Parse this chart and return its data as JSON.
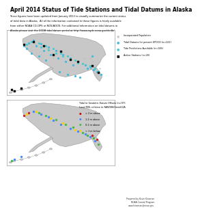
{
  "title": "April 2014 Status of Tide Stations and Tidal Datums in Alaska",
  "body_text1": "These figures have been updated from January 2013 to visually summarize the current status",
  "body_text2": "of tidal data in Alaska.  All of the information contained in these figures is freely available",
  "body_text3": "from either NOAA CO-OPS or NOS/AOOS. For additional information on tidal datums in",
  "body_text4": "Alaska please visit the DCDB tidal datum portal at http://www.ngdc.noaa.gov/dcdb/",
  "legend1_items": [
    {
      "label": "Incorporated Population",
      "color": "#cccccc",
      "marker": "o"
    },
    {
      "label": "Tidal Datums for present EPOCH (n=222)",
      "color": "#44bbdd",
      "marker": "o"
    },
    {
      "label": "Tide Predictions Available (n=146)",
      "color": "#44cccc",
      "marker": "o"
    },
    {
      "label": "Active Stations (n=26)",
      "color": "#111111",
      "marker": "s"
    }
  ],
  "legend2_title_line1": "Tidal to Geodetic Datum Offsets (n=97):",
  "legend2_title_line2": "Local MSL relative to NAVD88/Geoid12A",
  "legend2_items": [
    {
      "label": "> 2 m above",
      "color": "#cc0000",
      "marker": "o"
    },
    {
      "label": "1-2 m above",
      "color": "#4488ff",
      "marker": "o"
    },
    {
      "label": "0-1 m above",
      "color": "#44bb44",
      "marker": "o"
    },
    {
      "label": "< 1 m below",
      "color": "#ffcc00",
      "marker": "o"
    }
  ],
  "credit": "Prepared by Kevin Kinsman\nNOAA Coastal Program\nwww.kinsman@noaa.gov",
  "bg_color": "#ffffff",
  "map_bg": "#ffffff",
  "alaska_fill": "#c8c8c8",
  "alaska_edge": "#999999"
}
